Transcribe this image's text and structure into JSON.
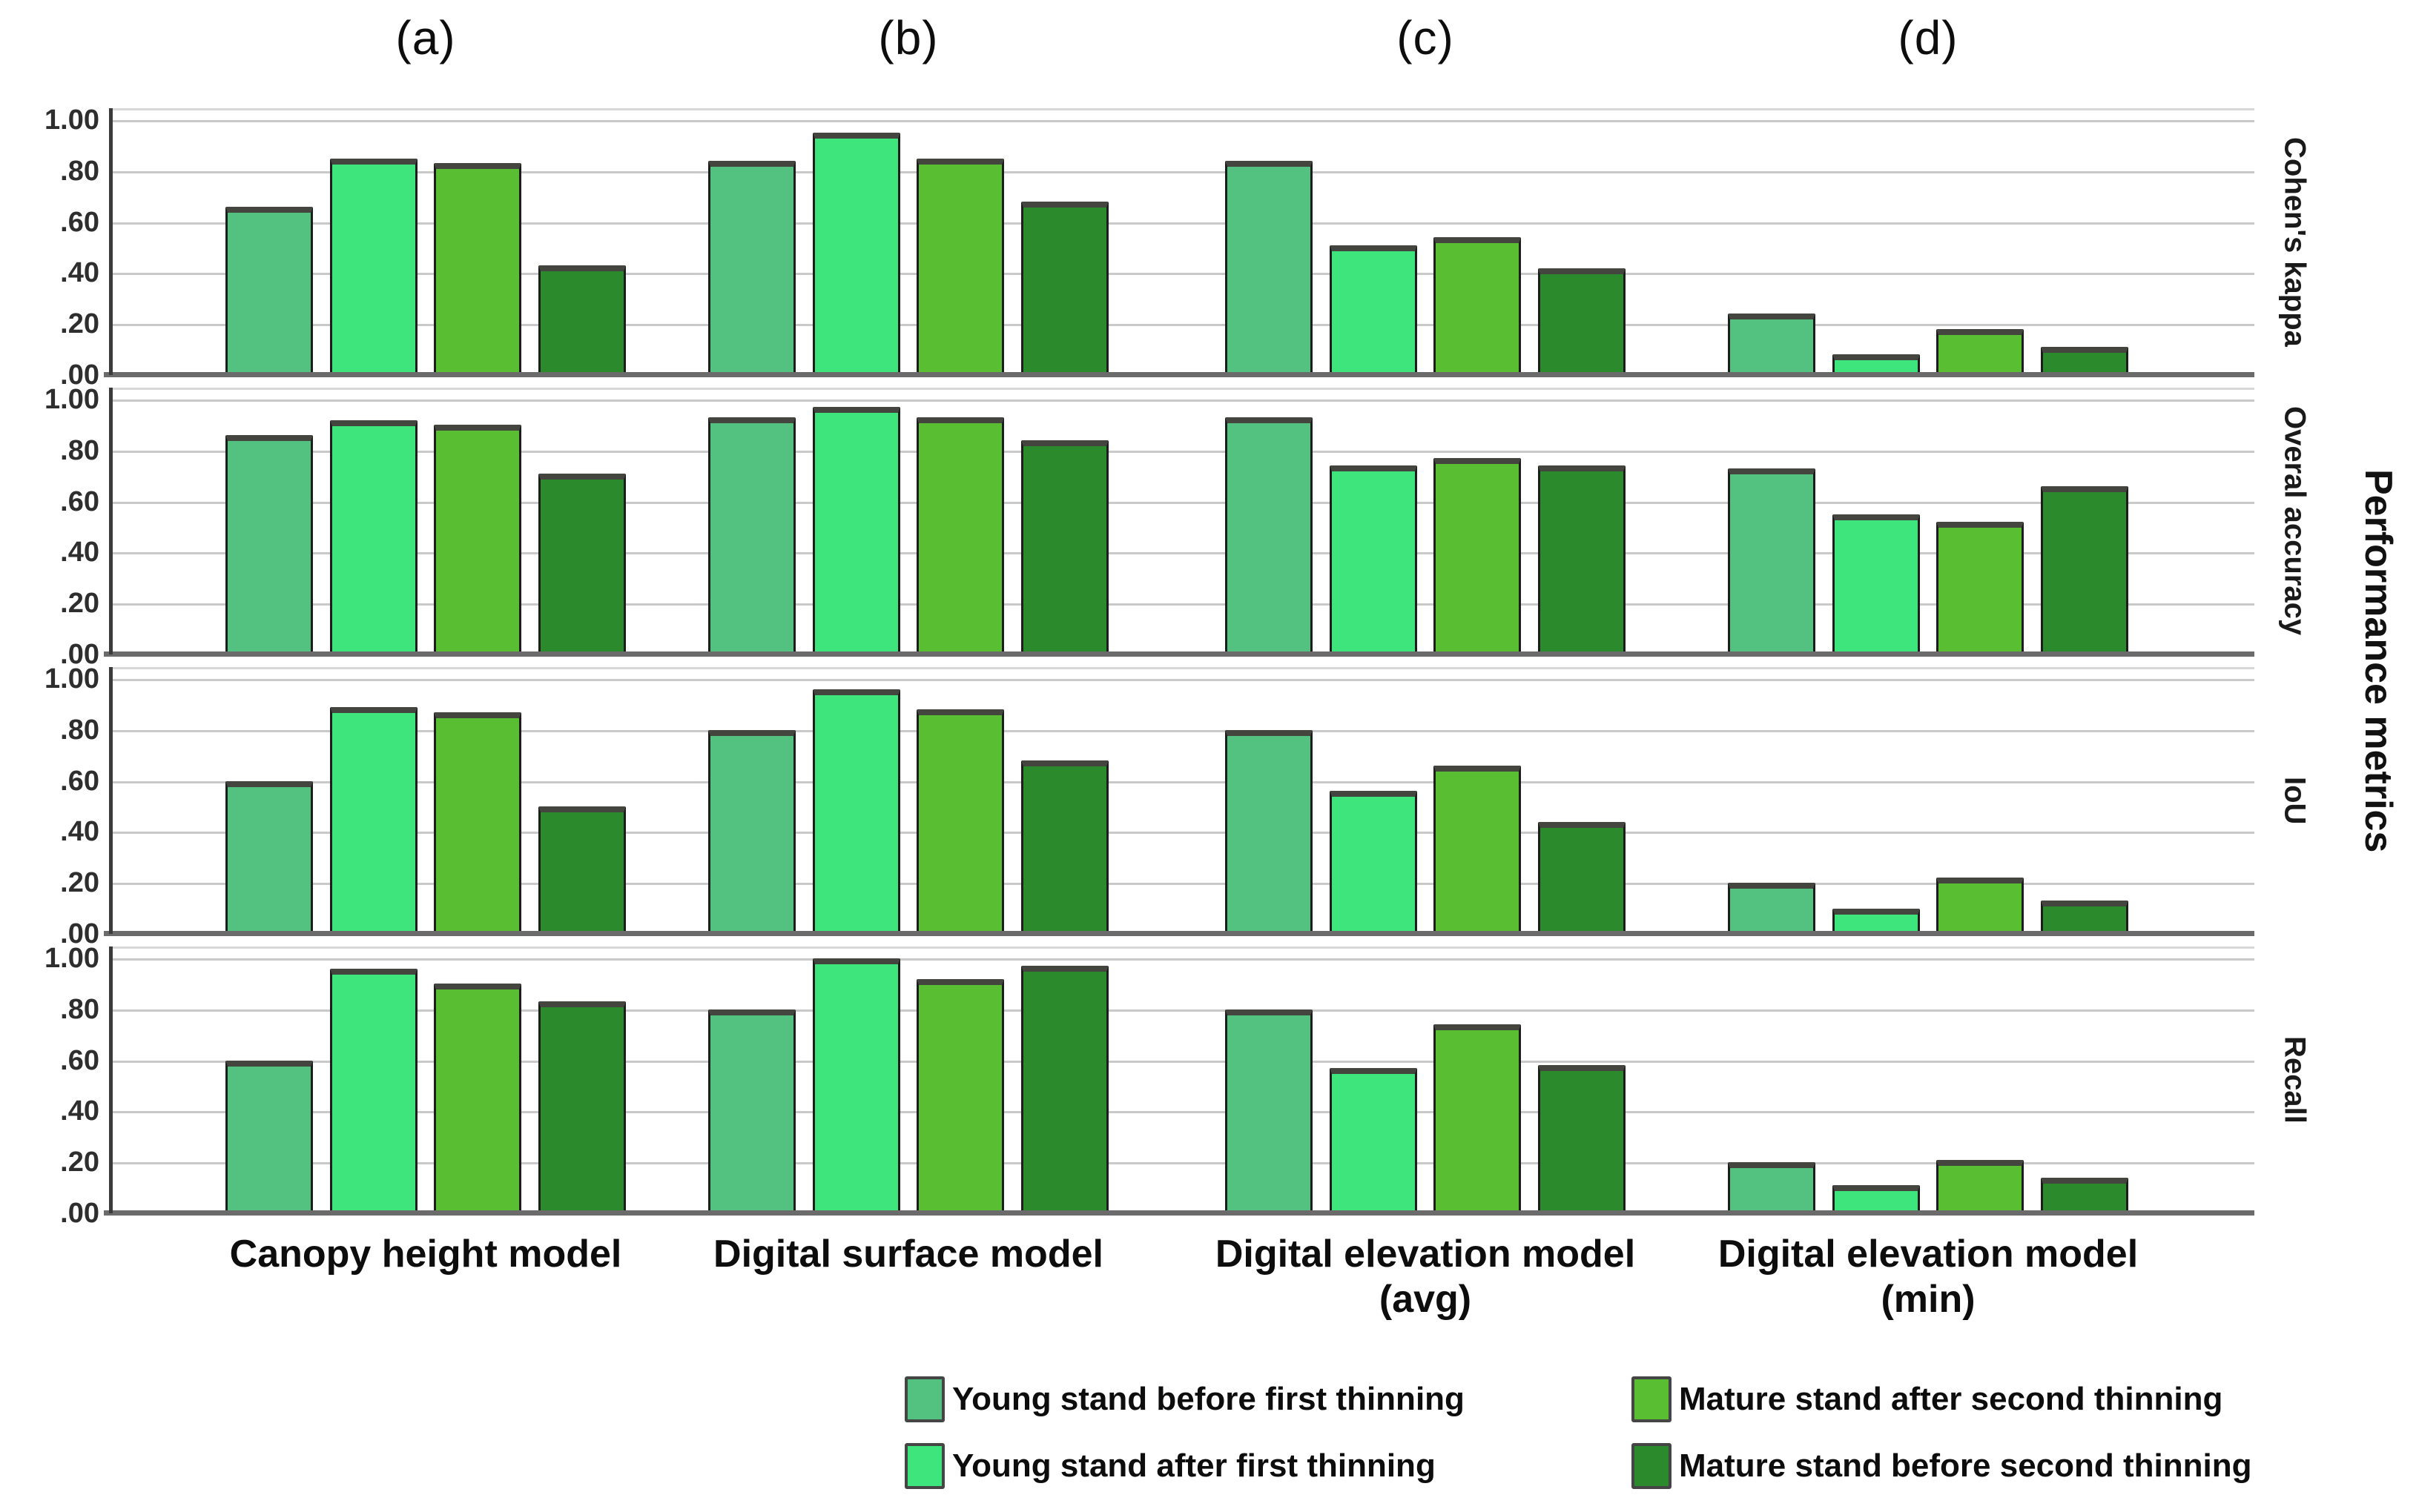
{
  "figure": {
    "panel_labels": [
      "(a)",
      "(b)",
      "(c)",
      "(d)"
    ],
    "y_axis_ticks": [
      "1.00",
      ".80",
      ".60",
      ".40",
      ".20",
      ".00"
    ],
    "metric_row_labels": [
      "Cohen's kappa",
      "Overal accuracy",
      "IoU",
      "Recall"
    ],
    "right_axis_title": "Performance metrics",
    "category_labels": [
      {
        "line1": "Canopy height model",
        "line2": ""
      },
      {
        "line1": "Digital surface model",
        "line2": ""
      },
      {
        "line1": "Digital elevation model",
        "line2": "(avg)"
      },
      {
        "line1": "Digital elevation model",
        "line2": "(min)"
      }
    ]
  },
  "legend": {
    "items": [
      {
        "label": "Young stand before first thinning",
        "color": "#53C17F",
        "column": 0,
        "row": 0
      },
      {
        "label": "Young stand after first thinning",
        "color": "#3EE57D",
        "column": 0,
        "row": 1
      },
      {
        "label": "Mature stand after second thinning",
        "color": "#5ABE33",
        "column": 1,
        "row": 0
      },
      {
        "label": "Mature stand before second thinning",
        "color": "#2B8A2B",
        "column": 1,
        "row": 1
      }
    ]
  },
  "colors": {
    "series": [
      "#53C17F",
      "#3EE57D",
      "#5ABE33",
      "#2B8A2B"
    ],
    "gridline": "#c9c9c9",
    "baseline": "#6b6b6b",
    "axis_line": "#3b3b3b",
    "bar_border": "#1d1d1d",
    "bar_cap": "#45453f"
  },
  "chart_data": [
    {
      "type": "bar",
      "title": "Cohen's kappa",
      "categories": [
        "Canopy height model",
        "Digital surface model",
        "Digital elevation model (avg)",
        "Digital elevation model (min)"
      ],
      "series": [
        {
          "name": "Young stand before first thinning",
          "values": [
            0.66,
            0.84,
            0.84,
            0.24
          ]
        },
        {
          "name": "Young stand after first thinning",
          "values": [
            0.85,
            0.95,
            0.51,
            0.08
          ]
        },
        {
          "name": "Mature stand after second thinning",
          "values": [
            0.83,
            0.85,
            0.54,
            0.18
          ]
        },
        {
          "name": "Mature stand before second thinning",
          "values": [
            0.43,
            0.68,
            0.42,
            0.11
          ]
        }
      ],
      "ylabel": "Cohen's kappa",
      "ylim": [
        0,
        1
      ],
      "grid": true,
      "legend_position": "bottom"
    },
    {
      "type": "bar",
      "title": "Overal accuracy",
      "categories": [
        "Canopy height model",
        "Digital surface model",
        "Digital elevation model (avg)",
        "Digital elevation model (min)"
      ],
      "series": [
        {
          "name": "Young stand before first thinning",
          "values": [
            0.86,
            0.93,
            0.93,
            0.73
          ]
        },
        {
          "name": "Young stand after first thinning",
          "values": [
            0.92,
            0.97,
            0.74,
            0.55
          ]
        },
        {
          "name": "Mature stand after second thinning",
          "values": [
            0.9,
            0.93,
            0.77,
            0.52
          ]
        },
        {
          "name": "Mature stand before second thinning",
          "values": [
            0.71,
            0.84,
            0.74,
            0.66
          ]
        }
      ],
      "ylabel": "Overal accuracy",
      "ylim": [
        0,
        1
      ],
      "grid": true,
      "legend_position": "bottom"
    },
    {
      "type": "bar",
      "title": "IoU",
      "categories": [
        "Canopy height model",
        "Digital surface model",
        "Digital elevation model (avg)",
        "Digital elevation model (min)"
      ],
      "series": [
        {
          "name": "Young stand before first thinning",
          "values": [
            0.6,
            0.8,
            0.8,
            0.2
          ]
        },
        {
          "name": "Young stand after first thinning",
          "values": [
            0.89,
            0.96,
            0.56,
            0.1
          ]
        },
        {
          "name": "Mature stand after second thinning",
          "values": [
            0.87,
            0.88,
            0.66,
            0.22
          ]
        },
        {
          "name": "Mature stand before second thinning",
          "values": [
            0.5,
            0.68,
            0.44,
            0.13
          ]
        }
      ],
      "ylabel": "IoU",
      "ylim": [
        0,
        1
      ],
      "grid": true,
      "legend_position": "bottom"
    },
    {
      "type": "bar",
      "title": "Recall",
      "categories": [
        "Canopy height model",
        "Digital surface model",
        "Digital elevation model (avg)",
        "Digital elevation model (min)"
      ],
      "series": [
        {
          "name": "Young stand before first thinning",
          "values": [
            0.6,
            0.8,
            0.8,
            0.2
          ]
        },
        {
          "name": "Young stand after first thinning",
          "values": [
            0.96,
            1.0,
            0.57,
            0.11
          ]
        },
        {
          "name": "Mature stand after second thinning",
          "values": [
            0.9,
            0.92,
            0.74,
            0.21
          ]
        },
        {
          "name": "Mature stand before second thinning",
          "values": [
            0.83,
            0.97,
            0.58,
            0.14
          ]
        }
      ],
      "ylabel": "Recall",
      "ylim": [
        0,
        1
      ],
      "grid": true,
      "legend_position": "bottom"
    }
  ]
}
